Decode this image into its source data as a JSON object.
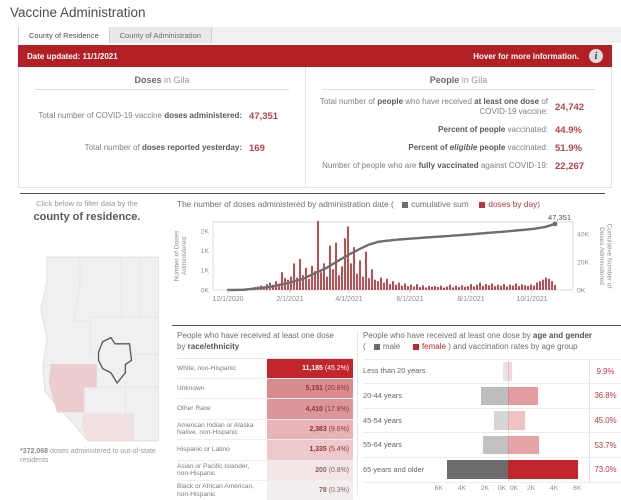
{
  "page": {
    "title": "Vaccine Administration"
  },
  "tabs": [
    {
      "label": "County of Residence"
    },
    {
      "label": "County of Administration"
    }
  ],
  "banner": {
    "date_label": "Date updated: 11/1/2021",
    "hover_label": "Hover for more information.",
    "info_icon": "i"
  },
  "doses": {
    "header_strong": "Doses",
    "header_rest": " in Gila",
    "rows": [
      {
        "s1": "Total number of COVID-19 vaccine ",
        "b1": "doses administered:",
        "i1": "",
        "b2": "",
        "s2": "",
        "b3": "",
        "s3": "",
        "value": "47,351"
      },
      {
        "s1": "Total number of ",
        "b1": "doses reported yesterday:",
        "i1": "",
        "b2": "",
        "s2": "",
        "b3": "",
        "s3": "",
        "value": "169"
      }
    ]
  },
  "people": {
    "header_strong": "People",
    "header_rest": " in Gila",
    "rows": [
      {
        "s1": "Total number of ",
        "b1": "people",
        "i1": "",
        "b2": "",
        "s2": " who have received ",
        "b3": "at least one dose",
        "s3": " of COVID-19 vaccine:",
        "value": "24,742"
      },
      {
        "s1": "",
        "b1": "Percent of people",
        "i1": "",
        "b2": "",
        "s2": " vaccinated:",
        "b3": "",
        "s3": "",
        "value": "44.9%"
      },
      {
        "s1": "",
        "b1": "Percent of ",
        "i1": "eligible",
        "b2": " people",
        "s2": " vaccinated:",
        "b3": "",
        "s3": "",
        "value": "51.9%"
      },
      {
        "s1": "Number of people who are ",
        "b1": "fully vaccinated",
        "i1": "",
        "b2": "",
        "s2": " against COVID-19:",
        "b3": "",
        "s3": "",
        "value": "22,267"
      }
    ]
  },
  "filter": {
    "line1": "Click below to filter data by the",
    "line2": "county of residence."
  },
  "footnote": {
    "strong": "*372,068",
    "rest": " doses administered to out-of-state residents"
  },
  "race": {
    "title_line1": "People who have received at least one dose",
    "title_line2_pre": "by ",
    "title_line2_bold": "race/ethnicity",
    "rows": [
      {
        "label": "White, non-Hispanic",
        "value": "11,185",
        "pct": "(45.2%)",
        "bar": "#c2262d",
        "text": "#ffffff"
      },
      {
        "label": "Unknown",
        "value": "5,151",
        "pct": "(20.8%)",
        "bar": "#d98b8e",
        "text": "#8e3338"
      },
      {
        "label": "Other Race",
        "value": "4,410",
        "pct": "(17.8%)",
        "bar": "#dc969a",
        "text": "#8e3338"
      },
      {
        "label": "American Indian or Alaska Native, non-Hispanic",
        "value": "2,383",
        "pct": "(9.6%)",
        "bar": "#e8b4b7",
        "text": "#8e3338"
      },
      {
        "label": "Hispanic or Latino",
        "value": "1,335",
        "pct": "(5.4%)",
        "bar": "#efcacc",
        "text": "#8e3338"
      },
      {
        "label": "Asian or Pacific Islander, non-Hispanic",
        "value": "200",
        "pct": "(0.8%)",
        "bar": "#f4e5e6",
        "text": "#8a6365"
      },
      {
        "label": "Black or African American, non-Hispanic",
        "value": "78",
        "pct": "(0.3%)",
        "bar": "#f2eeee",
        "text": "#8a6365"
      }
    ]
  },
  "age": {
    "title_line1_pre": "People who have received at least one dose by ",
    "title_line1_bold": "age and gender",
    "legend_open": "(",
    "male_word": "male",
    "female_word": "female",
    "legend_close": ") and vaccination rates by age group",
    "male_color": "#6d6d6d",
    "female_color": "#c0262c",
    "axis_max_k": 6.5,
    "axis_ticks": [
      {
        "k": 0,
        "label": "0K"
      },
      {
        "k": 2,
        "label": "2K"
      },
      {
        "k": 4,
        "label": "4K"
      },
      {
        "k": 6,
        "label": "6K"
      }
    ],
    "rows": [
      {
        "label": "Less than 20 years",
        "male_k": 0.45,
        "female_k": 0.35,
        "shade": 0.18,
        "rate": "9.9%"
      },
      {
        "label": "20-44 years",
        "male_k": 2.3,
        "female_k": 2.6,
        "shade": 0.45,
        "rate": "36.8%"
      },
      {
        "label": "45-54 years",
        "male_k": 1.2,
        "female_k": 1.5,
        "shade": 0.28,
        "rate": "45.0%"
      },
      {
        "label": "55-64 years",
        "male_k": 2.2,
        "female_k": 2.7,
        "shade": 0.42,
        "rate": "53.7%"
      },
      {
        "label": "65 years and older",
        "male_k": 5.3,
        "female_k": 6.1,
        "shade": 1,
        "rate": "73.0%"
      }
    ]
  },
  "chart_data": {
    "type": "combo-bar-line",
    "title": "The number of doses administered by administration date",
    "legend": [
      {
        "label": "cumulative sum",
        "color": "#6e6e6e"
      },
      {
        "label": "doses by day",
        "color": "#b8383c"
      }
    ],
    "annotation": "47,351",
    "final_value": 47351,
    "bar_color": "#bb5054",
    "line_color": "#6e6e6e",
    "left_axis": {
      "label_lines": [
        "Number of Doses",
        "Administered"
      ],
      "ticks": [
        {
          "label": "2K",
          "v": 2000
        },
        {
          "label": "1K",
          "v": 1333
        },
        {
          "label": "1K",
          "v": 667
        },
        {
          "label": "0K",
          "v": 0
        }
      ],
      "max": 2300
    },
    "right_axis": {
      "label_lines": [
        "Cumulative Number of",
        "Doses Administered"
      ],
      "ticks": [
        {
          "label": "40K",
          "v": 40000
        },
        {
          "label": "20K",
          "v": 20000
        },
        {
          "label": "0K",
          "v": 0
        }
      ],
      "max": 48700
    },
    "x_ticks": [
      {
        "label": "12/1/2020",
        "day": 0
      },
      {
        "label": "2/1/2021",
        "day": 62
      },
      {
        "label": "4/1/2021",
        "day": 121
      },
      {
        "label": "6/1/2021",
        "day": 182
      },
      {
        "label": "8/1/2021",
        "day": 243
      },
      {
        "label": "10/1/2021",
        "day": 304
      }
    ],
    "daily_step_days": 3,
    "daily": [
      0,
      5,
      10,
      15,
      20,
      30,
      40,
      60,
      80,
      100,
      120,
      150,
      100,
      200,
      250,
      180,
      300,
      220,
      600,
      400,
      350,
      450,
      900,
      420,
      1050,
      500,
      750,
      380,
      820,
      640,
      2450,
      600,
      900,
      450,
      1500,
      700,
      1600,
      500,
      800,
      1750,
      2150,
      900,
      1450,
      550,
      1000,
      450,
      1300,
      400,
      700,
      350,
      300,
      420,
      250,
      380,
      200,
      300,
      180,
      250,
      150,
      220,
      130,
      180,
      120,
      200,
      100,
      160,
      90,
      140,
      110,
      130,
      100,
      150,
      80,
      120,
      180,
      90,
      140,
      100,
      160,
      110,
      130,
      200,
      120,
      180,
      250,
      140,
      200,
      160,
      220,
      130,
      180,
      140,
      200,
      120,
      180,
      150,
      220,
      130,
      190,
      160,
      140,
      180,
      150,
      250,
      300,
      350,
      420,
      380,
      300,
      169
    ],
    "cumulative_anchors": [
      [
        0,
        0
      ],
      [
        5,
        150
      ],
      [
        10,
        1200
      ],
      [
        15,
        2600
      ],
      [
        20,
        5000
      ],
      [
        25,
        8000
      ],
      [
        30,
        13000
      ],
      [
        33,
        16000
      ],
      [
        36,
        20000
      ],
      [
        40,
        25000
      ],
      [
        44,
        29500
      ],
      [
        47,
        32500
      ],
      [
        50,
        34500
      ],
      [
        55,
        35800
      ],
      [
        61,
        36800
      ],
      [
        66,
        37600
      ],
      [
        71,
        38300
      ],
      [
        76,
        39100
      ],
      [
        81,
        39900
      ],
      [
        86,
        40800
      ],
      [
        92,
        41800
      ],
      [
        97,
        42800
      ],
      [
        102,
        43800
      ],
      [
        106,
        45300
      ],
      [
        109,
        47351
      ]
    ]
  },
  "colors": {
    "banner": "#b22025",
    "accent_red": "#c0262c",
    "kpi_value": "#b2474b"
  }
}
